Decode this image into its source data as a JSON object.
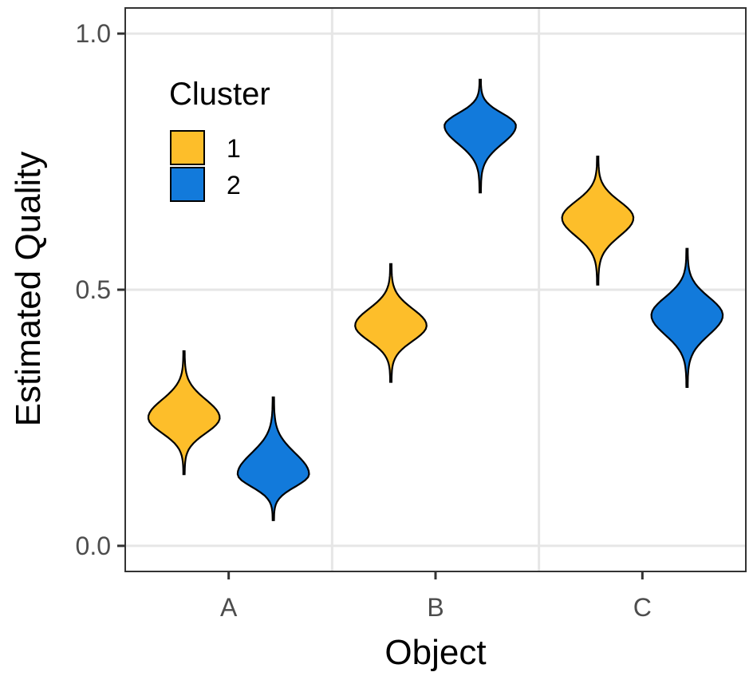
{
  "chart_data": {
    "type": "violin",
    "xlabel": "Object",
    "ylabel": "Estimated Quality",
    "categories": [
      "A",
      "B",
      "C"
    ],
    "ylim": [
      -0.05,
      1.05
    ],
    "yticks": [
      0.0,
      0.5,
      1.0
    ],
    "ytick_labels": [
      "0.0",
      "0.5",
      "1.0"
    ],
    "grid": true,
    "legend": {
      "title": "Cluster",
      "position": "top-left"
    },
    "series": [
      {
        "name": "1",
        "color": "#FDBE2A",
        "violins": [
          {
            "category": "A",
            "min": 0.14,
            "mode": 0.25,
            "max": 0.38
          },
          {
            "category": "B",
            "min": 0.32,
            "mode": 0.43,
            "max": 0.55
          },
          {
            "category": "C",
            "min": 0.51,
            "mode": 0.64,
            "max": 0.76
          }
        ]
      },
      {
        "name": "2",
        "color": "#127ADB",
        "violins": [
          {
            "category": "A",
            "min": 0.05,
            "mode": 0.14,
            "max": 0.29
          },
          {
            "category": "B",
            "min": 0.69,
            "mode": 0.82,
            "max": 0.91
          },
          {
            "category": "C",
            "min": 0.31,
            "mode": 0.45,
            "max": 0.58
          }
        ]
      }
    ]
  }
}
